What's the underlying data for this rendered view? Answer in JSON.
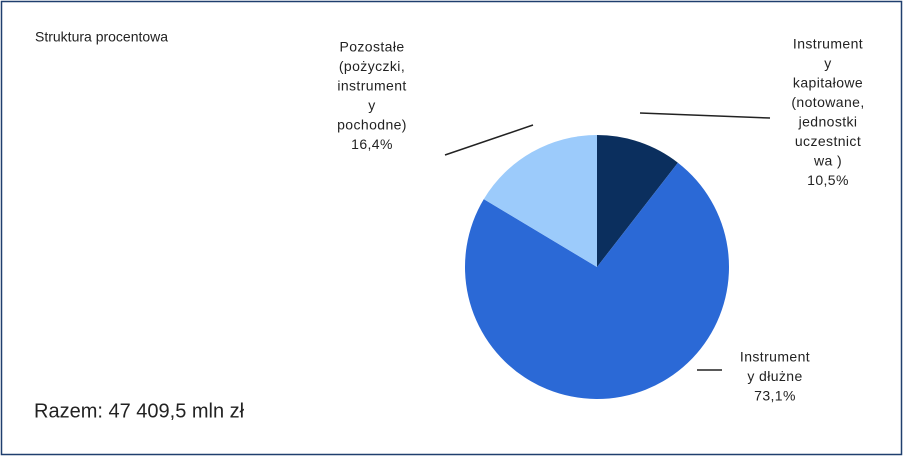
{
  "chart_data": {
    "type": "pie",
    "title": "Struktura procentowa",
    "annotation": "Razem: 47 409,5 mln zł",
    "categories": [
      [
        "Instrument",
        "y",
        "kapitałowe",
        "(notowane,",
        "jednostki",
        "uczestnict",
        "wa )"
      ],
      [
        "Instrument",
        "y dłużne"
      ],
      [
        "Pozostałe",
        "(pożyczki,",
        "instrument",
        "y",
        "pochodne)"
      ]
    ],
    "values": [
      10.5,
      73.1,
      16.4
    ],
    "value_labels": [
      "10,5%",
      "73,1%",
      "16,4%"
    ],
    "colors": [
      "#0b2f5e",
      "#2b69d6",
      "#9ccbfb"
    ]
  }
}
